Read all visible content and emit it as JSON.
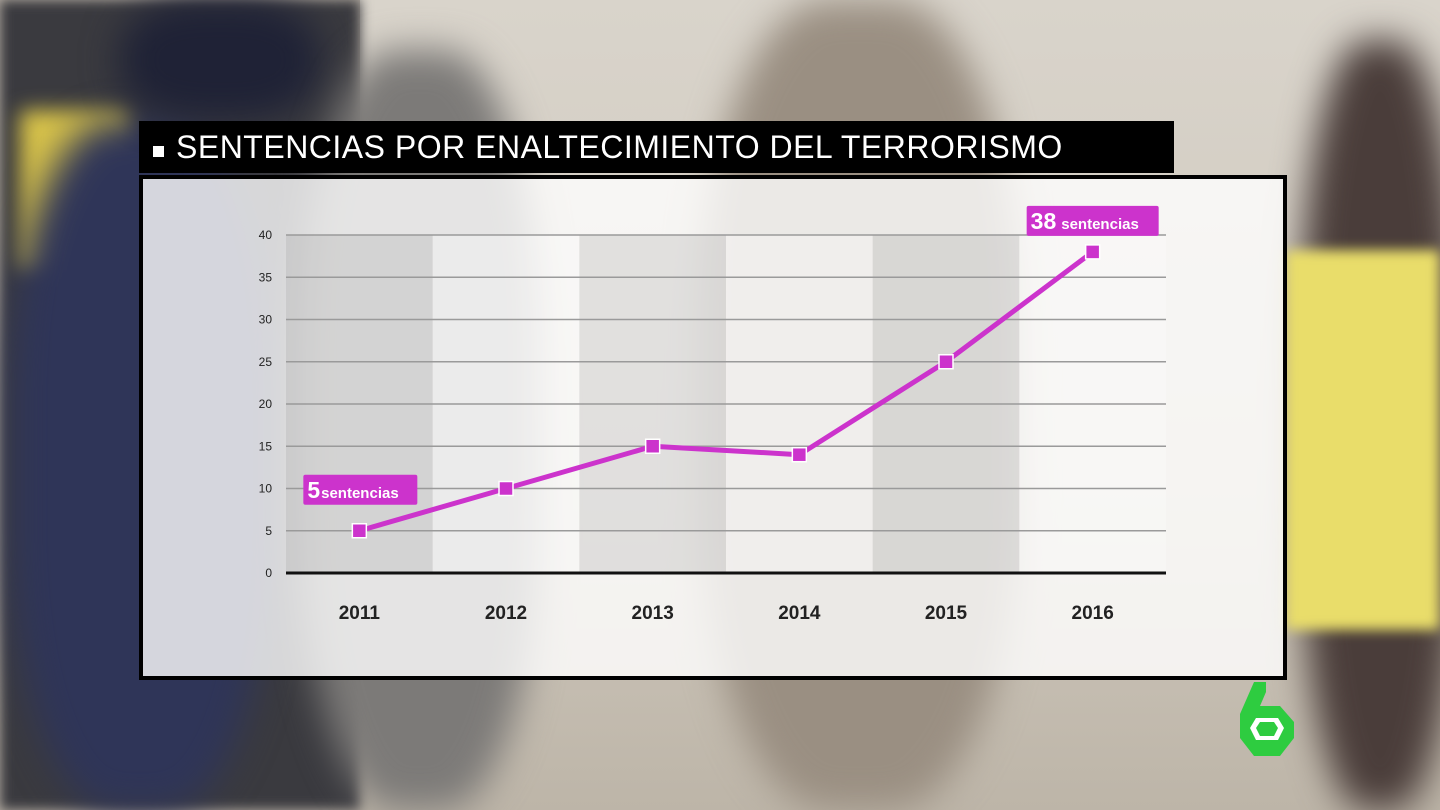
{
  "header": {
    "title": "SENTENCIAS POR ENALTECIMIENTO DEL TERRORISMO"
  },
  "colors": {
    "accent": "#cc33cc",
    "title_bg": "#000000",
    "logo": "#2ecc40"
  },
  "logo": {
    "icon": "channel-six-logo-icon"
  },
  "chart_data": {
    "type": "line",
    "title": "SENTENCIAS POR ENALTECIMIENTO DEL TERRORISMO",
    "xlabel": "",
    "ylabel": "",
    "categories": [
      "2011",
      "2012",
      "2013",
      "2014",
      "2015",
      "2016"
    ],
    "series": [
      {
        "values": [
          5,
          10,
          15,
          14,
          25,
          38
        ],
        "color": "#cc33cc",
        "marker": "square"
      }
    ],
    "ylim": [
      0,
      40
    ],
    "yticks": [
      "0",
      "5",
      "10",
      "15",
      "20",
      "25",
      "30",
      "35",
      "40"
    ],
    "grid": true,
    "annotations": [
      {
        "category": "2011",
        "number": "5",
        "unit": "sentencias"
      },
      {
        "category": "2016",
        "number": "38",
        "unit": "sentencias"
      }
    ]
  }
}
